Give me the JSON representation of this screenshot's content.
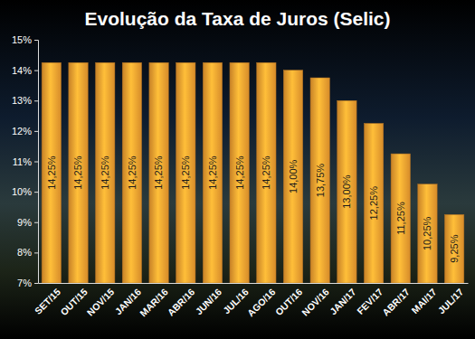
{
  "chart_data": {
    "type": "bar",
    "title": "Evolução da Taxa de Juros (Selic)",
    "categories": [
      "SET/15",
      "OUT/15",
      "NOV/15",
      "JAN/16",
      "MAR/16",
      "ABR/16",
      "JUN/16",
      "JUL/16",
      "AGO/16",
      "OUT/16",
      "NOV/16",
      "JAN/17",
      "FEV/17",
      "ABR/17",
      "MAI/17",
      "JUL/17"
    ],
    "values": [
      14.25,
      14.25,
      14.25,
      14.25,
      14.25,
      14.25,
      14.25,
      14.25,
      14.25,
      14.0,
      13.75,
      13.0,
      12.25,
      11.25,
      10.25,
      9.25
    ],
    "value_labels": [
      "14,25%",
      "14,25%",
      "14,25%",
      "14,25%",
      "14,25%",
      "14,25%",
      "14,25%",
      "14,25%",
      "14,25%",
      "14,00%",
      "13,75%",
      "13,00%",
      "12,25%",
      "11,25%",
      "10,25%",
      "9,25%"
    ],
    "data_labels": true,
    "color": "#f7a030",
    "ylim": [
      7,
      15
    ],
    "yticks": [
      {
        "value": 7,
        "label": "7%"
      },
      {
        "value": 8,
        "label": "8%"
      },
      {
        "value": 9,
        "label": "9%"
      },
      {
        "value": 10,
        "label": "10%"
      },
      {
        "value": 11,
        "label": "11%"
      },
      {
        "value": 12,
        "label": "12%"
      },
      {
        "value": 13,
        "label": "13%"
      },
      {
        "value": 14,
        "label": "14%"
      },
      {
        "value": 15,
        "label": "15%"
      }
    ],
    "grid": false
  }
}
